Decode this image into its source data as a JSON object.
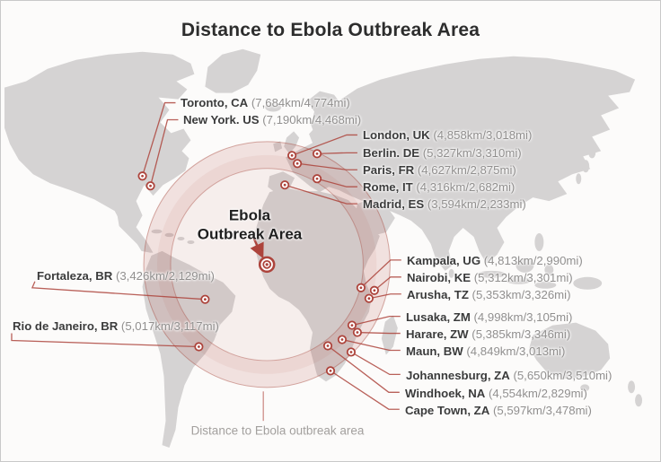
{
  "title": "Distance to Ebola Outbreak Area",
  "center_label": {
    "line1": "Ebola",
    "line2": "Outbreak Area"
  },
  "caption": "Distance to Ebola outbreak area",
  "colors": {
    "accent_red": "#ad443c",
    "ring_fill": "rgba(176,72,61,0.14)",
    "land_gray": "#d5d3d3",
    "city_text": "#3b3b3b",
    "distance_text": "#918f8e",
    "background": "#fcfbfa"
  },
  "marker_icon": "bullseye-icon",
  "cities": [
    {
      "name": "Toronto, CA",
      "distance": "(7,684km/4,774mi)"
    },
    {
      "name": "New York. US",
      "distance": "(7,190km/4,468mi)"
    },
    {
      "name": "London, UK",
      "distance": "(4,858km/3,018mi)"
    },
    {
      "name": "Berlin. DE",
      "distance": "(5,327km/3,310mi)"
    },
    {
      "name": "Paris, FR",
      "distance": "(4,627km/2,875mi)"
    },
    {
      "name": "Rome, IT",
      "distance": "(4,316km/2,682mi)"
    },
    {
      "name": "Madrid, ES",
      "distance": "(3,594km/2,233mi)"
    },
    {
      "name": "Kampala, UG",
      "distance": "(4,813km/2,990mi)"
    },
    {
      "name": "Nairobi, KE",
      "distance": "(5,312km/3,301mi)"
    },
    {
      "name": "Arusha, TZ",
      "distance": "(5,353km/3,326mi)"
    },
    {
      "name": "Lusaka, ZM",
      "distance": "(4,998km/3,105mi)"
    },
    {
      "name": "Harare, ZW",
      "distance": "(5,385km/3,346mi)"
    },
    {
      "name": "Maun, BW",
      "distance": "(4,849km/3,013mi)"
    },
    {
      "name": "Johannesburg, ZA",
      "distance": "(5,650km/3,510mi)"
    },
    {
      "name": "Windhoek, NA",
      "distance": "(4,554km/2,829mi)"
    },
    {
      "name": "Cape Town, ZA",
      "distance": "(5,597km/3,478mi)"
    },
    {
      "name": "Fortaleza, BR",
      "distance": "(3,426km/2,129mi)"
    },
    {
      "name": "Rio de Janeiro, BR",
      "distance": "(5,017km/3,117mi)"
    }
  ]
}
